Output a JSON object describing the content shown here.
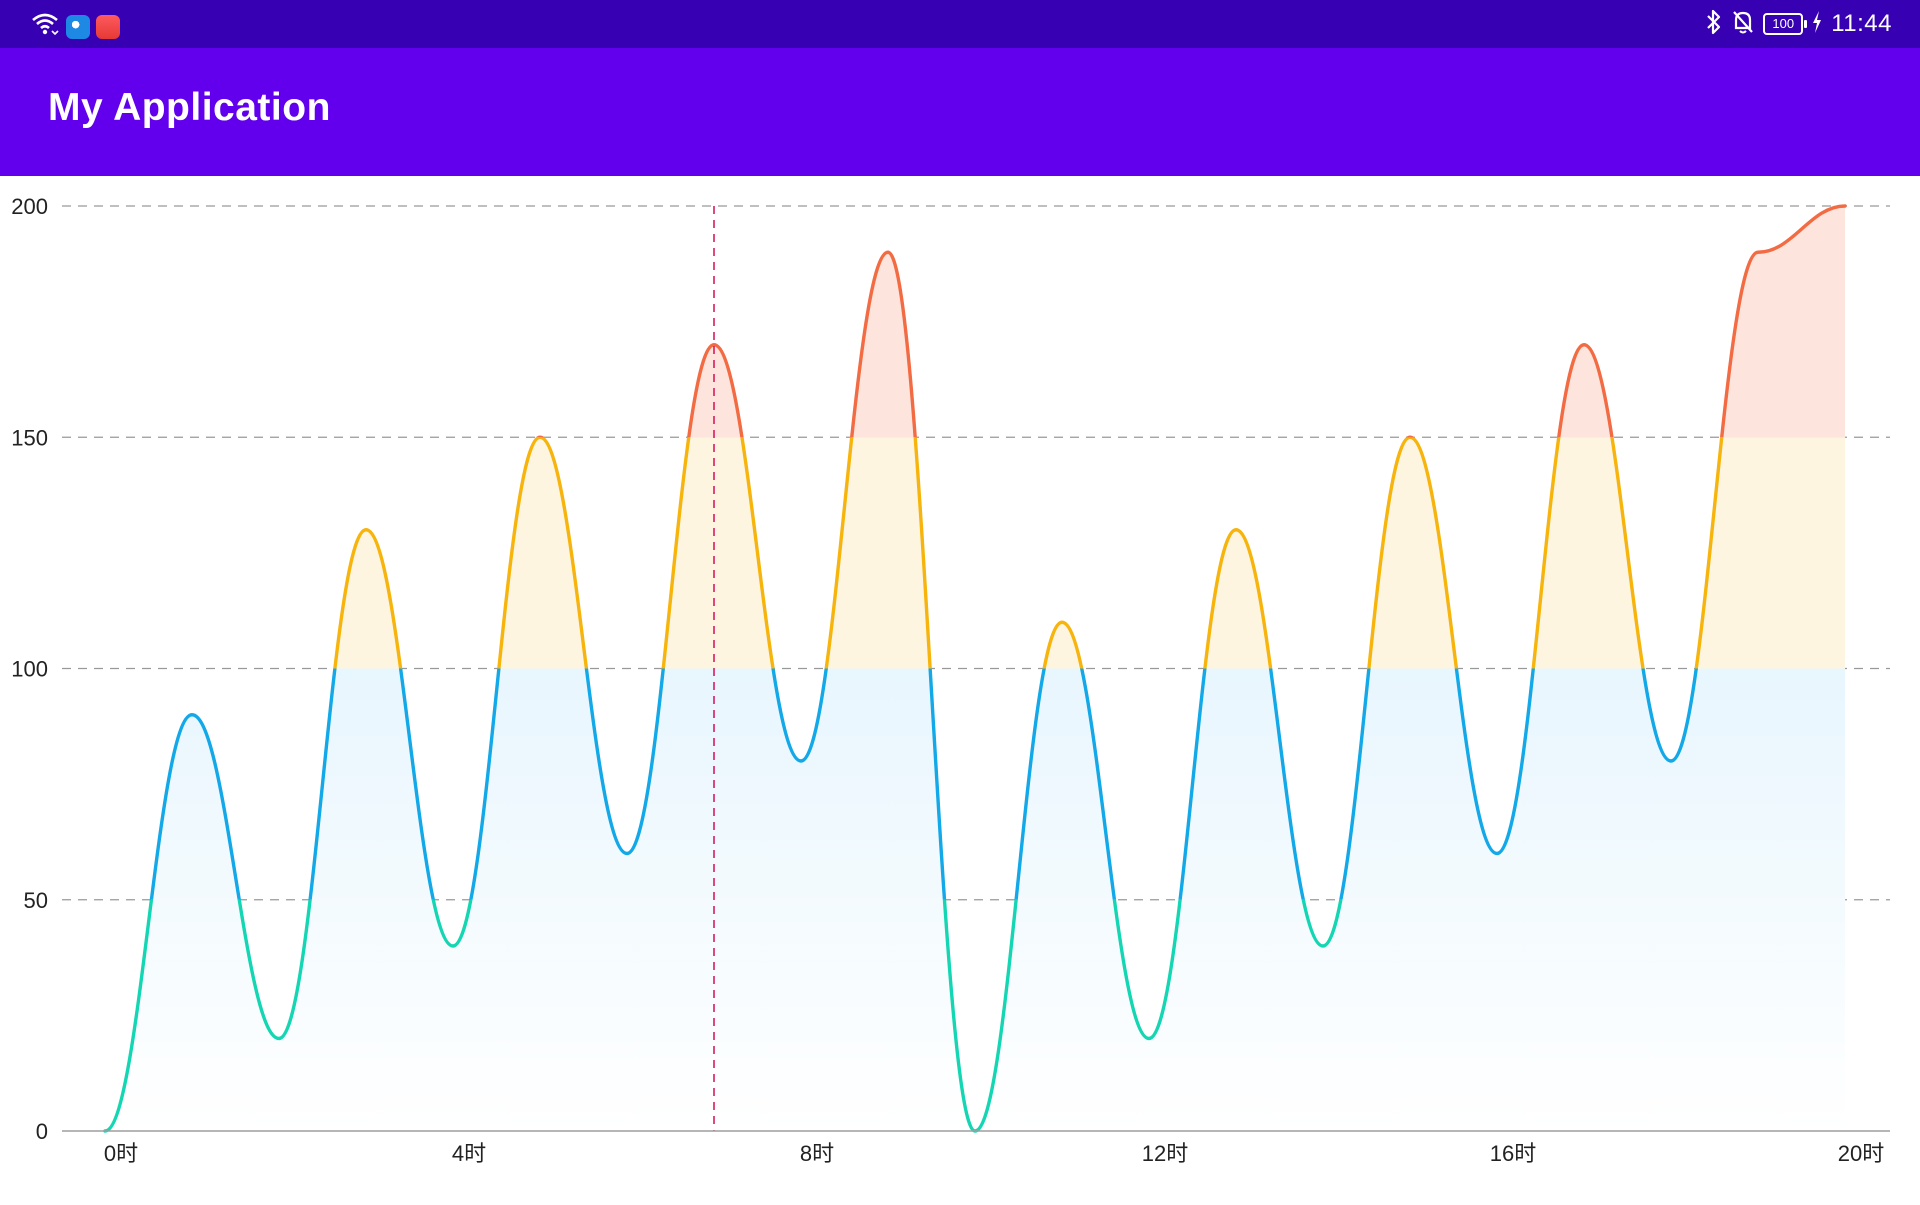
{
  "status_bar": {
    "icons": [
      "wifi-icon",
      "browser-app-icon",
      "store-app-icon",
      "bluetooth-icon",
      "bell-off-icon",
      "charging-icon"
    ],
    "battery": "100",
    "time": "11:44"
  },
  "app_bar": {
    "title": "My Application"
  },
  "chart_data": {
    "type": "area",
    "curve": "smooth",
    "x_tick_labels": [
      "0时",
      "4时",
      "8时",
      "12时",
      "16时",
      "20时"
    ],
    "x_ticks": [
      0,
      4,
      8,
      12,
      16,
      20
    ],
    "y_tick_labels": [
      "0",
      "50",
      "100",
      "150",
      "200"
    ],
    "y_ticks": [
      0,
      50,
      100,
      150,
      200
    ],
    "xlim": [
      0,
      20
    ],
    "ylim": [
      0,
      200
    ],
    "grid": "horizontal-dashed",
    "x": [
      0,
      1,
      2,
      3,
      4,
      5,
      6,
      7,
      8,
      9,
      10,
      11,
      12,
      13,
      14,
      15,
      16,
      17,
      18,
      19,
      20
    ],
    "y": [
      0,
      90,
      20,
      130,
      40,
      150,
      60,
      170,
      80,
      190,
      0,
      110,
      20,
      130,
      40,
      150,
      60,
      170,
      80,
      190,
      200
    ],
    "highlight_x": 7,
    "bands": [
      {
        "from": 0,
        "to": 50,
        "color": "#15D6B3"
      },
      {
        "from": 50,
        "to": 100,
        "color": "#13A8E8"
      },
      {
        "from": 100,
        "to": 150,
        "color": "#F6B40D"
      },
      {
        "from": 150,
        "to": 200,
        "color": "#F26B43"
      }
    ],
    "fill_colors": {
      "red": "#FDE4DC",
      "yellow": "#FEF5E0",
      "blue": "#E8F6FE",
      "white": "#FFFFFF"
    },
    "colors": {
      "grid": "#999999",
      "axis": "#9e9e9e",
      "highlight": "#D81B60",
      "text": "#222222"
    }
  }
}
